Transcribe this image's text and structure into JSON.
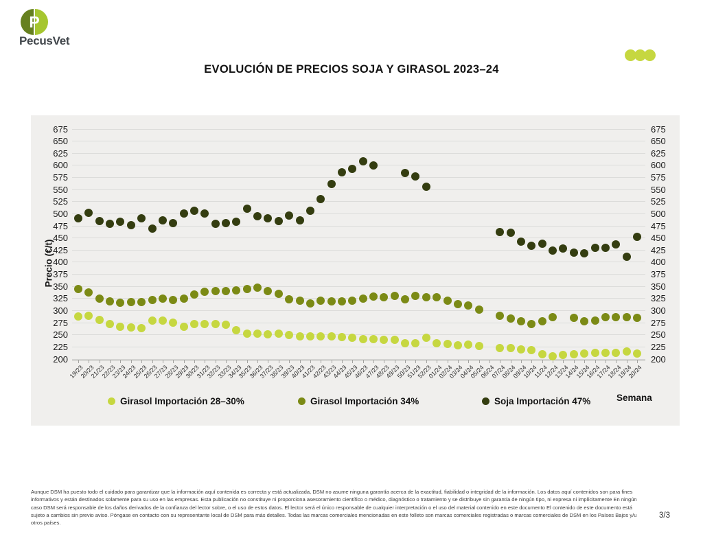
{
  "brand": {
    "name": "PecusVet",
    "logo_letter": "P",
    "logo_left_color": "#66801f",
    "logo_right_color": "#a6c62f"
  },
  "header": {
    "title": "EVOLUCIÓN DE PRECIOS SOJA Y GIRASOL 2023–24",
    "corner_dots_color": "#c6d740"
  },
  "chart_data": {
    "type": "scatter",
    "title": "EVOLUCIÓN DE PRECIOS SOJA Y GIRASOL 2023–24",
    "xlabel": "Semana",
    "ylabel": "Precio (€/t)",
    "ylim": [
      200,
      675
    ],
    "yticks": [
      675,
      650,
      625,
      600,
      575,
      550,
      525,
      500,
      475,
      450,
      425,
      400,
      375,
      350,
      325,
      300,
      275,
      250,
      225,
      200
    ],
    "grid": true,
    "legend_position": "bottom",
    "panel_background": "#f0efed",
    "categories": [
      "19/23",
      "20/23",
      "21/23",
      "22/23",
      "23/23",
      "24/23",
      "25/23",
      "26/23",
      "27/23",
      "28/23",
      "29/23",
      "30/23",
      "31/23",
      "32/23",
      "33/23",
      "34/23",
      "35/23",
      "36/23",
      "37/23",
      "38/23",
      "39/23",
      "40/23",
      "41/23",
      "42/23",
      "43/23",
      "44/23",
      "45/23",
      "46/23",
      "47/23",
      "48/23",
      "49/23",
      "50/23",
      "51/23",
      "52/23",
      "01/24",
      "02/24",
      "03/24",
      "04/24",
      "05/24",
      "06/24",
      "07/24",
      "08/24",
      "09/24",
      "10/24",
      "11/24",
      "12/24",
      "13/24",
      "14/24",
      "15/24",
      "16/24",
      "17/24",
      "18/24",
      "19/24",
      "20/24"
    ],
    "series": [
      {
        "name": "Girasol Importación 28–30%",
        "color": "#c6d740",
        "values": [
          288,
          289,
          281,
          272,
          267,
          265,
          264,
          280,
          279,
          275,
          266,
          272,
          273,
          272,
          271,
          260,
          253,
          253,
          251,
          252,
          249,
          247,
          247,
          247,
          247,
          246,
          244,
          241,
          241,
          240,
          239,
          233,
          233,
          244,
          233,
          231,
          229,
          230,
          227,
          null,
          222,
          222,
          220,
          219,
          210,
          206,
          208,
          210,
          212,
          213,
          213,
          213,
          215,
          212
        ]
      },
      {
        "name": "Girasol Importación 34%",
        "color": "#7b8a15",
        "values": [
          345,
          337,
          325,
          319,
          316,
          317,
          318,
          322,
          325,
          322,
          325,
          333,
          339,
          341,
          341,
          342,
          345,
          347,
          340,
          334,
          324,
          321,
          315,
          321,
          319,
          319,
          320,
          325,
          329,
          328,
          330,
          324,
          330,
          328,
          328,
          321,
          313,
          310,
          302,
          null,
          290,
          284,
          278,
          273,
          278,
          287,
          null,
          285,
          278,
          279,
          287,
          287,
          287,
          285
        ]
      },
      {
        "name": "Soja Importación 47%",
        "color": "#343d10",
        "values": [
          490,
          502,
          485,
          479,
          484,
          476,
          490,
          469,
          486,
          481,
          501,
          506,
          500,
          480,
          481,
          484,
          510,
          495,
          490,
          485,
          497,
          486,
          506,
          531,
          562,
          585,
          593,
          609,
          600,
          null,
          null,
          584,
          577,
          556,
          null,
          null,
          null,
          null,
          null,
          null,
          462,
          461,
          442,
          434,
          438,
          424,
          428,
          420,
          418,
          429,
          429,
          437,
          411,
          453
        ]
      }
    ]
  },
  "footer": {
    "disclaimer": "Aunque DSM ha puesto todo el cuidado para garantizar que la información aquí contenida es correcta y está actualizada, DSM no asume ninguna garantía acerca de la exactitud, fiabilidad o integridad de la información. Los datos aquí contenidos son para fines informativos y están destinados solamente para su uso en las empresas. Esta publicación no constituye ni proporciona asesoramiento científico o médico, diagnóstico o tratamiento y se distribuye sin garantía de ningún tipo, ni expresa ni implícitamente En ningún caso DSM será responsable de los daños derivados de la confianza del lector sobre, o el uso de estos datos. El lector será el único responsable de cualquier interpretación o el uso del material contenido en este documento El contenido de este documento está sujeto a cambios sin previo aviso. Póngase en contacto con su representante local de DSM para más detalles. Todas las marcas comerciales mencionadas en este folleto son marcas comerciales registradas o marcas comerciales de DSM en los Países Bajos y/u otros países.",
    "page": "3/3"
  }
}
